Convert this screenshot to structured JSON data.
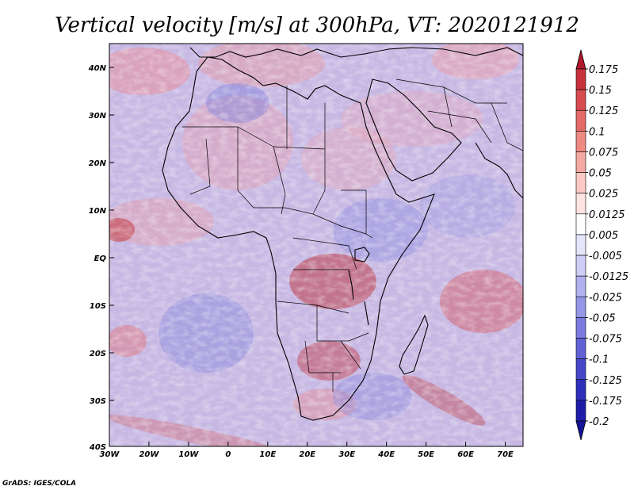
{
  "title": "Vertical velocity [m/s] at 300hPa, VT: 2020121912",
  "credit": "GrADS: IGES/COLA",
  "map": {
    "lon_labels": [
      "30W",
      "20W",
      "10W",
      "0",
      "10E",
      "20E",
      "30E",
      "40E",
      "50E",
      "60E",
      "70E"
    ],
    "lat_labels": [
      "40N",
      "30N",
      "20N",
      "10N",
      "EQ",
      "10S",
      "20S",
      "30S",
      "40S"
    ]
  },
  "colorbar": {
    "labels": [
      "0.175",
      "0.15",
      "0.125",
      "0.1",
      "0.075",
      "0.05",
      "0.025",
      "0.0125",
      "0.005",
      "-0.005",
      "-0.0125",
      "-0.025",
      "-0.05",
      "-0.075",
      "-0.1",
      "-0.125",
      "-0.175",
      "-0.2"
    ],
    "colors": [
      "#b2182b",
      "#c8323c",
      "#d84b4f",
      "#e46a68",
      "#ef8a83",
      "#f6a9a2",
      "#fbc9c3",
      "#fde4e1",
      "#ffffff",
      "#e6e6fb",
      "#cdcdf5",
      "#b1b1ef",
      "#9696e8",
      "#7b7be0",
      "#6161d6",
      "#4747cb",
      "#2e2ebd",
      "#1d1daa",
      "#14149a"
    ]
  }
}
